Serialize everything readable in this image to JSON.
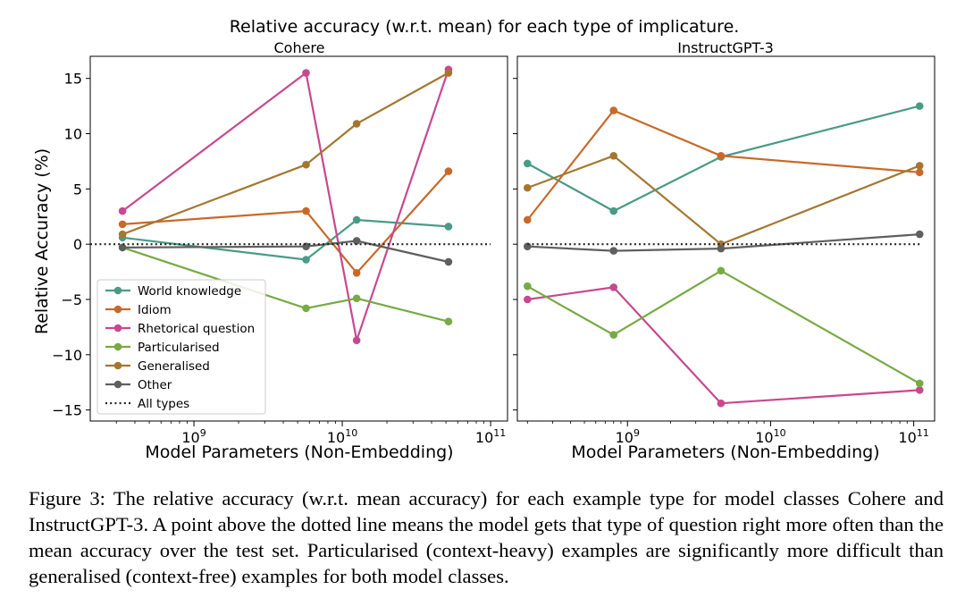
{
  "figure_title": "Relative accuracy (w.r.t. mean) for each type of implicature.",
  "caption": "Figure 3: The relative accuracy (w.r.t. mean accuracy) for each example type for model classes Cohere and InstructGPT-3. A point above the dotted line means the model gets that type of question right more often than the mean accuracy over the test set. Particularised (context-heavy) examples are significantly more difficult than generalised (context-free) examples for both model classes.",
  "colors": {
    "World knowledge": "#4a9b86",
    "Idiom": "#c8692a",
    "Rhetorical question": "#c8488f",
    "Particularised": "#78aa44",
    "Generalised": "#a47730",
    "Other": "#5f5f5f",
    "All types": "#222222"
  },
  "chart_data": [
    {
      "type": "line",
      "title": "Cohere",
      "xlabel": "Model Parameters (Non-Embedding)",
      "ylabel": "Relative Accuracy (%)",
      "xscale": "log",
      "xlim": [
        200000000,
        130000000000
      ],
      "ylim": [
        -16,
        17
      ],
      "yticks": [
        -15,
        -10,
        -5,
        0,
        5,
        10,
        15
      ],
      "xticks": [
        {
          "value": 1000000000,
          "base": "10",
          "exp": "9"
        },
        {
          "value": 10000000000,
          "base": "10",
          "exp": "10"
        },
        {
          "value": 100000000000,
          "base": "10",
          "exp": "11"
        }
      ],
      "legend_position": "lower-left",
      "x": [
        330000000,
        5700000000,
        12500000000,
        52000000000
      ],
      "series": [
        {
          "name": "World knowledge",
          "values": [
            0.6,
            -1.4,
            2.2,
            1.6
          ]
        },
        {
          "name": "Idiom",
          "values": [
            1.8,
            3.0,
            -2.6,
            6.6
          ]
        },
        {
          "name": "Rhetorical question",
          "values": [
            3.0,
            15.5,
            -8.7,
            15.8
          ]
        },
        {
          "name": "Particularised",
          "values": [
            -0.3,
            -5.8,
            -4.9,
            -7.0
          ]
        },
        {
          "name": "Generalised",
          "values": [
            0.9,
            7.2,
            10.9,
            15.5
          ]
        },
        {
          "name": "Other",
          "values": [
            -0.3,
            -0.2,
            0.3,
            -1.6
          ]
        },
        {
          "name": "All types",
          "values": [
            0,
            0
          ],
          "x": [
            200000000,
            100000000000
          ],
          "style": "dotted"
        }
      ]
    },
    {
      "type": "line",
      "title": "InstructGPT-3",
      "xlabel": "Model Parameters (Non-Embedding)",
      "ylabel": "",
      "xscale": "log",
      "xlim": [
        170000000,
        140000000000
      ],
      "ylim": [
        -16,
        17
      ],
      "yticks": [
        -15,
        -10,
        -5,
        0,
        5,
        10,
        15
      ],
      "xticks": [
        {
          "value": 1000000000,
          "base": "10",
          "exp": "9"
        },
        {
          "value": 10000000000,
          "base": "10",
          "exp": "10"
        },
        {
          "value": 100000000000,
          "base": "10",
          "exp": "11"
        }
      ],
      "legend_position": "none",
      "x": [
        200000000,
        800000000,
        4500000000,
        110000000000
      ],
      "series": [
        {
          "name": "World knowledge",
          "values": [
            7.3,
            3.0,
            7.9,
            12.5
          ]
        },
        {
          "name": "Idiom",
          "values": [
            2.2,
            12.1,
            8.0,
            6.5
          ]
        },
        {
          "name": "Rhetorical question",
          "values": [
            -5.0,
            -3.9,
            -14.4,
            -13.2
          ]
        },
        {
          "name": "Particularised",
          "values": [
            -3.8,
            -8.2,
            -2.4,
            -12.6
          ]
        },
        {
          "name": "Generalised",
          "values": [
            5.1,
            8.0,
            0.0,
            7.1
          ]
        },
        {
          "name": "Other",
          "values": [
            -0.2,
            -0.6,
            -0.4,
            0.9
          ]
        },
        {
          "name": "All types",
          "values": [
            0,
            0
          ],
          "x": [
            200000000,
            110000000000
          ],
          "style": "dotted"
        }
      ]
    }
  ]
}
